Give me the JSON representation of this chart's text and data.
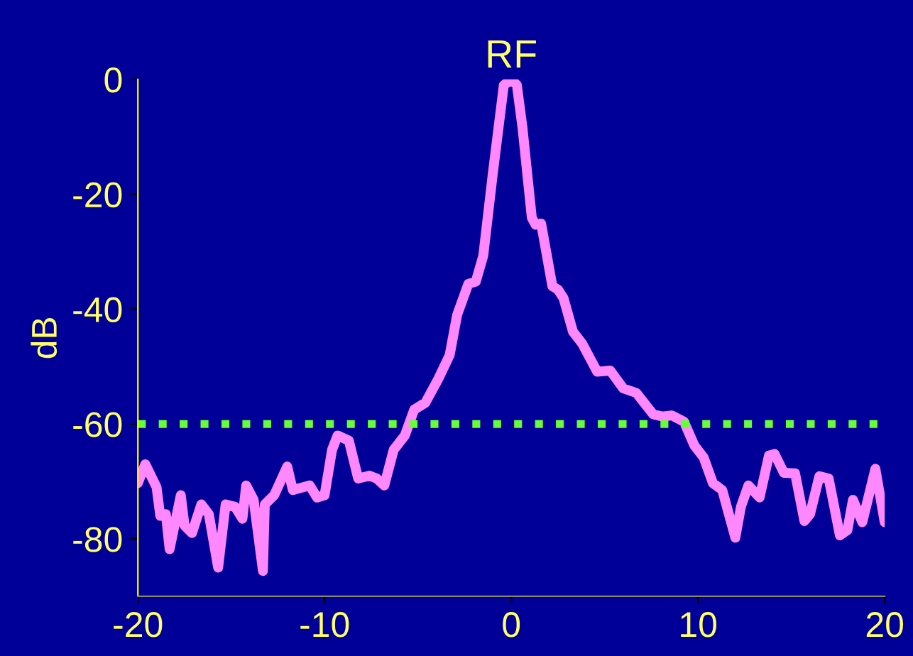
{
  "chart_data": {
    "type": "line",
    "title": "RF",
    "ylabel": "dB",
    "xlim": [
      -20,
      20
    ],
    "xticks": [
      -20,
      -10,
      0,
      10,
      20
    ],
    "ylim": [
      -90,
      0
    ],
    "yticks": [
      0,
      -20,
      -40,
      -60,
      -80
    ],
    "grid": false,
    "legend": false,
    "marker": "none",
    "line_style": "solid",
    "ref_lines": [
      {
        "axis": "y",
        "value": -60,
        "color": "#66ff33",
        "line_style": "dotted"
      }
    ],
    "series": [
      {
        "color": "#ff88ff",
        "x": [
          -20.0,
          -19.6,
          -19.0,
          -18.8,
          -18.5,
          -18.3,
          -17.7,
          -17.5,
          -17.1,
          -16.6,
          -16.2,
          -15.7,
          -15.3,
          -14.8,
          -14.4,
          -14.2,
          -13.8,
          -13.3,
          -13.2,
          -12.7,
          -12.0,
          -11.7,
          -10.8,
          -10.4,
          -10.0,
          -9.6,
          -9.3,
          -8.7,
          -8.2,
          -7.6,
          -7.2,
          -6.8,
          -6.3,
          -5.7,
          -5.2,
          -4.6,
          -3.9,
          -3.3,
          -2.9,
          -2.3,
          -1.9,
          -1.5,
          -1.0,
          -0.4,
          0.0,
          0.3,
          0.6,
          1.1,
          1.3,
          1.6,
          2.2,
          2.5,
          2.8,
          3.3,
          3.8,
          4.6,
          5.3,
          6.0,
          6.7,
          7.6,
          8.1,
          8.6,
          9.25,
          9.8,
          10.3,
          10.8,
          11.3,
          12.0,
          12.3,
          12.7,
          13.3,
          13.8,
          14.1,
          14.6,
          15.2,
          15.7,
          16.0,
          16.5,
          17.0,
          17.6,
          18.0,
          18.3,
          18.8,
          19.5,
          20.0
        ],
        "values": [
          -70.3,
          -67,
          -71,
          -76,
          -75.7,
          -81.8,
          -72.4,
          -77.7,
          -79,
          -74,
          -75.7,
          -85,
          -74,
          -74.4,
          -76.5,
          -70.7,
          -73.2,
          -85.6,
          -74,
          -72.4,
          -67.4,
          -71.5,
          -70.7,
          -72.8,
          -72.4,
          -64.5,
          -62,
          -62.9,
          -69.5,
          -69,
          -69.5,
          -70.7,
          -64.5,
          -62,
          -57.5,
          -56.3,
          -52.1,
          -48,
          -41,
          -35.6,
          -35.2,
          -30.7,
          -16.7,
          -1,
          0,
          -1,
          -8.4,
          -24.1,
          -25.3,
          -25.1,
          -36,
          -36.6,
          -38.1,
          -43.9,
          -46,
          -50.9,
          -50.7,
          -53.8,
          -54.6,
          -58.3,
          -58.7,
          -58.5,
          -59.6,
          -63.7,
          -65.8,
          -70.3,
          -71.5,
          -79.8,
          -74.4,
          -70.7,
          -72.8,
          -65.5,
          -65.2,
          -68.5,
          -68.6,
          -76.9,
          -75.7,
          -69.1,
          -69.5,
          -79.4,
          -78.5,
          -73.2,
          -77.1,
          -67.8,
          -77.1
        ]
      }
    ]
  }
}
